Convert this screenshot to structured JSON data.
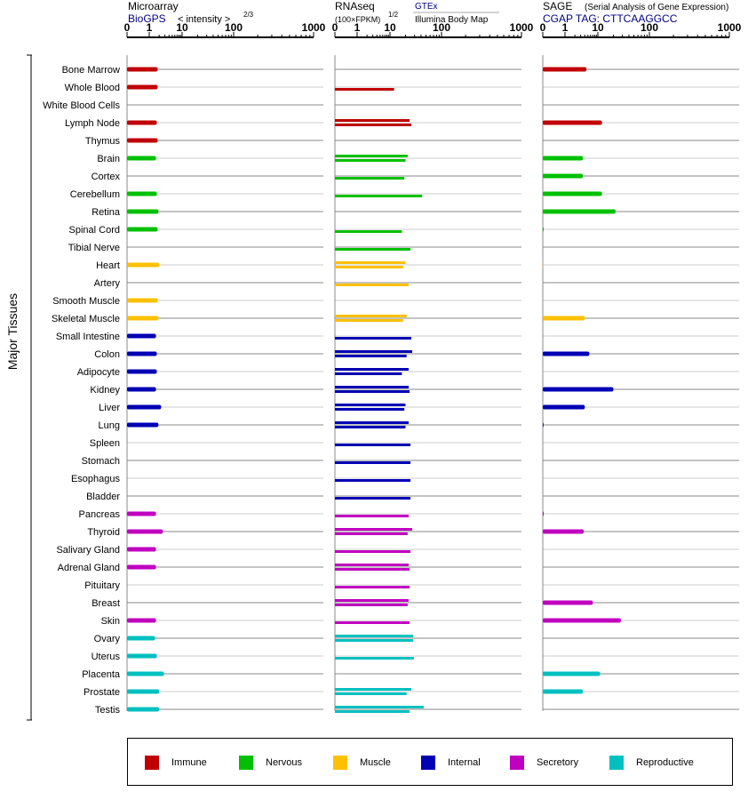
{
  "panels": {
    "microarray": {
      "title": "Microarray",
      "subtitle": "BioGPS",
      "scale_label": "< intensity >",
      "scale_exp": "2/3"
    },
    "rnaseq": {
      "title": "RNAseq",
      "subtitle": "(100×FPKM)",
      "scale_exp": "1/2",
      "source1": "GTEx",
      "source2": "Illumina Body Map"
    },
    "sage": {
      "title": "SAGE",
      "subtitle": "(Serial Analysis of Gene Expression)",
      "tag": "CGAP TAG: CTTCAAGGCC"
    }
  },
  "tick_labels": [
    "0",
    "1",
    "10",
    "100",
    "1000"
  ],
  "side_label": "Major Tissues",
  "colors": {
    "Immune": "#c00000",
    "Nervous": "#00c000",
    "Muscle": "#ffc000",
    "Internal": "#0000b4",
    "Secretory": "#c000c0",
    "Reproductive": "#00c0c0"
  },
  "legend": [
    "Immune",
    "Nervous",
    "Muscle",
    "Internal",
    "Secretory",
    "Reproductive"
  ],
  "chart_data": {
    "type": "bar",
    "orientation": "horizontal",
    "x_scale": "transformed",
    "xlim": [
      0,
      1000
    ],
    "categories": [
      "Bone Marrow",
      "Whole Blood",
      "White Blood Cells",
      "Lymph Node",
      "Thymus",
      "Brain",
      "Cortex",
      "Cerebellum",
      "Retina",
      "Spinal Cord",
      "Tibial Nerve",
      "Heart",
      "Artery",
      "Smooth Muscle",
      "Skeletal Muscle",
      "Small Intestine",
      "Colon",
      "Adipocyte",
      "Kidney",
      "Liver",
      "Lung",
      "Spleen",
      "Stomach",
      "Esophagus",
      "Bladder",
      "Pancreas",
      "Thyroid",
      "Salivary Gland",
      "Adrenal Gland",
      "Pituitary",
      "Breast",
      "Skin",
      "Ovary",
      "Uterus",
      "Placenta",
      "Prostate",
      "Testis"
    ],
    "groups": [
      "Immune",
      "Immune",
      "Immune",
      "Immune",
      "Immune",
      "Nervous",
      "Nervous",
      "Nervous",
      "Nervous",
      "Nervous",
      "Nervous",
      "Muscle",
      "Muscle",
      "Muscle",
      "Muscle",
      "Internal",
      "Internal",
      "Internal",
      "Internal",
      "Internal",
      "Internal",
      "Internal",
      "Internal",
      "Internal",
      "Internal",
      "Secretory",
      "Secretory",
      "Secretory",
      "Secretory",
      "Secretory",
      "Secretory",
      "Secretory",
      "Reproductive",
      "Reproductive",
      "Reproductive",
      "Reproductive",
      "Reproductive"
    ],
    "series": [
      {
        "name": "Microarray",
        "values": [
          [
            1.8
          ],
          [
            1.8
          ],
          [],
          [
            1.7
          ],
          [
            1.8
          ],
          [
            1.6
          ],
          [],
          [
            1.7
          ],
          [
            1.9
          ],
          [
            1.8
          ],
          [],
          [
            2.0
          ],
          [],
          [
            1.8
          ],
          [
            1.9
          ],
          [
            1.6
          ],
          [
            1.7
          ],
          [
            1.7
          ],
          [
            1.6
          ],
          [
            2.3
          ],
          [
            1.9
          ],
          [],
          [],
          [],
          [],
          [
            1.6
          ],
          [
            2.6
          ],
          [
            1.6
          ],
          [
            1.6
          ],
          [],
          [],
          [
            1.6
          ],
          [
            1.5
          ],
          [
            1.7
          ],
          [
            2.8
          ],
          [
            2.0
          ],
          [
            2.0
          ]
        ]
      },
      {
        "name": "RNAseq",
        "values": [
          [],
          [
            12
          ],
          [],
          [
            24,
            26
          ],
          [],
          [
            22,
            20
          ],
          [
            19
          ],
          [
            42
          ],
          [],
          [
            17
          ],
          [
            25
          ],
          [
            20,
            18
          ],
          [
            23
          ],
          [],
          [
            21,
            18
          ],
          [
            26
          ],
          [
            27,
            21
          ],
          [
            23,
            17
          ],
          [
            23,
            24
          ],
          [
            20,
            19
          ],
          [
            23,
            20
          ],
          [
            25
          ],
          [
            25
          ],
          [
            25
          ],
          [
            25
          ],
          [
            23
          ],
          [
            27,
            22
          ],
          [
            25
          ],
          [
            23,
            24
          ],
          [
            24
          ],
          [
            23,
            22
          ],
          [
            24
          ],
          [
            28,
            28
          ],
          [
            29
          ],
          [],
          [
            26,
            21
          ],
          [
            45,
            24
          ]
        ]
      },
      {
        "name": "SAGE",
        "values": [
          [
            4.5
          ],
          [],
          [],
          [
            12
          ],
          [],
          [
            3.5
          ],
          [
            3.5
          ],
          [
            12
          ],
          [
            22
          ],
          [
            0.04
          ],
          [],
          [
            0.01
          ],
          [],
          [],
          [
            4
          ],
          [],
          [
            5.5
          ],
          [],
          [
            20
          ],
          [
            4
          ],
          [
            0.03
          ],
          [],
          [],
          [],
          [],
          [
            0.04
          ],
          [
            3.7
          ],
          [],
          [],
          [],
          [
            7
          ],
          [
            28
          ],
          [],
          [],
          [
            11
          ],
          [
            3.5
          ],
          []
        ]
      }
    ]
  }
}
